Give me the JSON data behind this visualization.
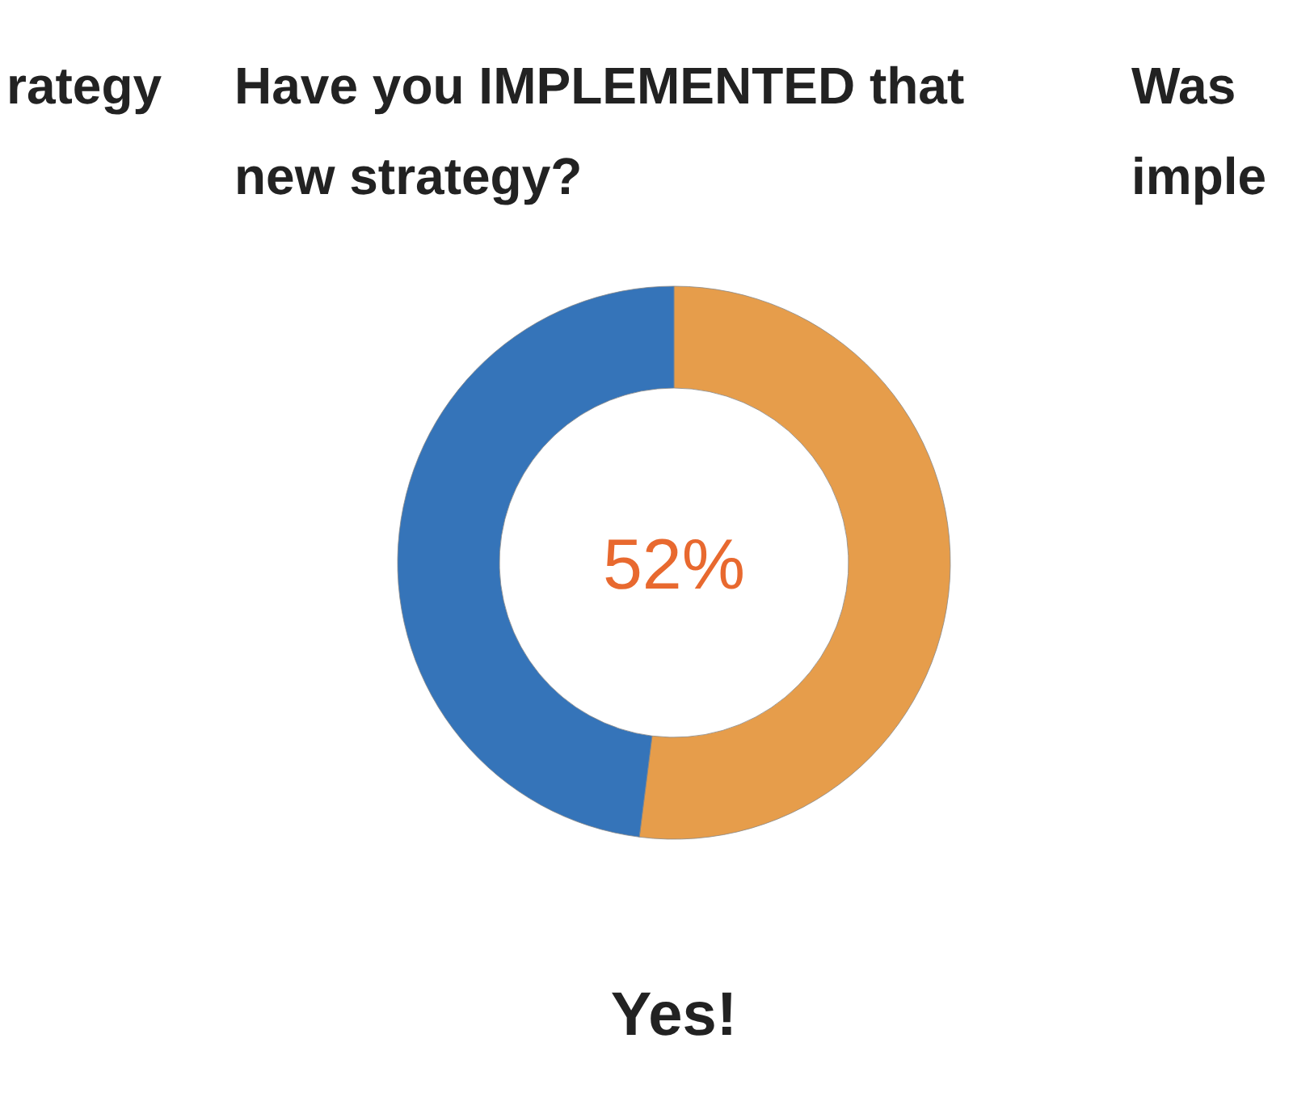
{
  "chart_data": {
    "type": "donut",
    "title": "Have you IMPLEMENTED that new strategy?",
    "categories": [
      null,
      null
    ],
    "values": [
      52,
      48
    ],
    "colors": [
      "#e69d4b",
      "#3574b9"
    ],
    "annotations": [
      "52%",
      "Yes!",
      "rategy",
      "Was",
      "imple"
    ]
  }
}
